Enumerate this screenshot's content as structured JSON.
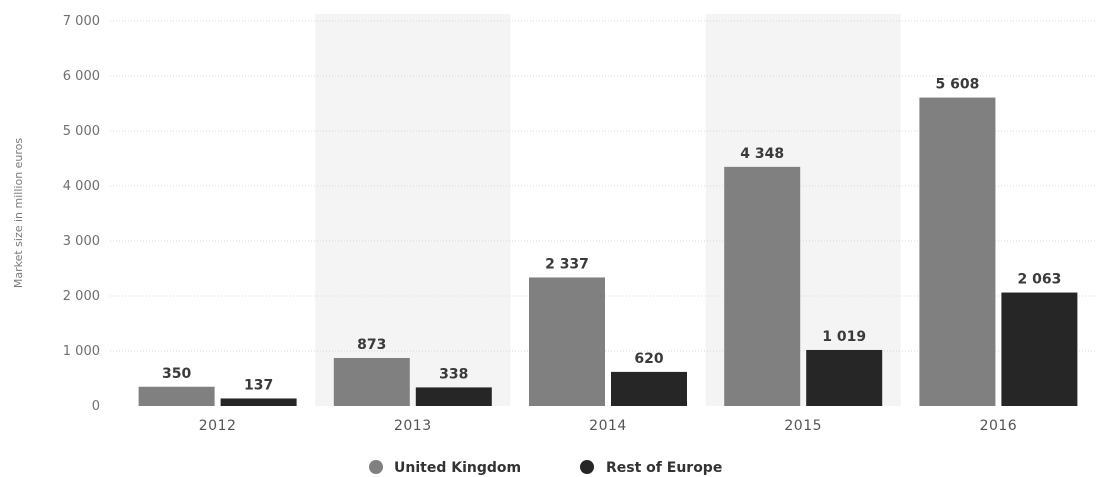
{
  "chart_data": {
    "type": "bar",
    "categories": [
      "2012",
      "2013",
      "2014",
      "2015",
      "2016"
    ],
    "series": [
      {
        "name": "United Kingdom",
        "values": [
          350,
          873,
          2337,
          4348,
          5608
        ],
        "labels": [
          "350",
          "873",
          "2 337",
          "4 348",
          "5 608"
        ],
        "color": "#808080"
      },
      {
        "name": "Rest of Europe",
        "values": [
          137,
          338,
          620,
          1019,
          2063
        ],
        "labels": [
          "137",
          "338",
          "620",
          "1 019",
          "2 063"
        ],
        "color": "#262626"
      }
    ],
    "ylabel": "Market size in million euros",
    "ylim": [
      0,
      7000
    ],
    "yticks": [
      0,
      1000,
      2000,
      3000,
      4000,
      5000,
      6000,
      7000
    ],
    "ytick_labels": [
      "0",
      "1 000",
      "2 000",
      "3 000",
      "4 000",
      "5 000",
      "6 000",
      "7 000"
    ],
    "grid": true,
    "band_color": "#f4f4f4",
    "legend_position": "bottom-center",
    "legend": [
      "United Kingdom",
      "Rest of Europe"
    ]
  }
}
